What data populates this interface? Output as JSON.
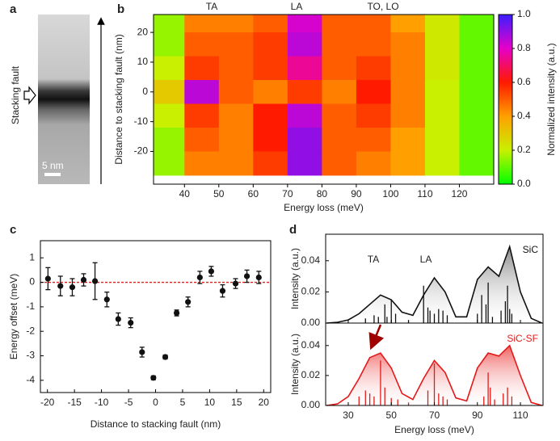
{
  "chart_data": [
    {
      "type": "image",
      "label": "a",
      "annotation": "Stacking fault",
      "scale_bar": "5 nm"
    },
    {
      "type": "heatmap",
      "label": "b",
      "x_label": "Energy loss (meV)",
      "y_label": "Distance to stacking fault (nm)",
      "colorbar_label": "Normalized intensity (a.u.)",
      "annotations": [
        "TA",
        "LA",
        "TO, LO"
      ],
      "x": [
        35,
        45,
        55,
        65,
        75,
        85,
        95,
        105,
        115,
        125
      ],
      "y": [
        24,
        16,
        8,
        0,
        -8,
        -16,
        -24
      ],
      "z": [
        [
          0.15,
          0.45,
          0.45,
          0.5,
          0.82,
          0.5,
          0.5,
          0.4,
          0.22,
          0.1
        ],
        [
          0.15,
          0.5,
          0.5,
          0.55,
          0.85,
          0.5,
          0.5,
          0.45,
          0.22,
          0.1
        ],
        [
          0.2,
          0.55,
          0.5,
          0.55,
          0.75,
          0.5,
          0.55,
          0.45,
          0.22,
          0.1
        ],
        [
          0.3,
          0.85,
          0.5,
          0.45,
          0.55,
          0.45,
          0.6,
          0.45,
          0.2,
          0.1
        ],
        [
          0.2,
          0.55,
          0.45,
          0.6,
          0.85,
          0.5,
          0.55,
          0.45,
          0.2,
          0.1
        ],
        [
          0.15,
          0.5,
          0.45,
          0.6,
          0.9,
          0.5,
          0.5,
          0.4,
          0.2,
          0.1
        ],
        [
          0.15,
          0.45,
          0.45,
          0.55,
          0.9,
          0.5,
          0.45,
          0.4,
          0.2,
          0.1
        ]
      ],
      "xlim": [
        31,
        130
      ],
      "ylim": [
        -31,
        26
      ],
      "xticks": [
        40,
        50,
        60,
        70,
        80,
        90,
        100,
        110,
        120
      ],
      "yticks": [
        -20,
        -10,
        0,
        10,
        20
      ],
      "clim": [
        0,
        1
      ],
      "cticks": [
        {
          "value": 0,
          "label": "0.0"
        },
        0.2,
        0.4,
        0.6,
        0.8,
        {
          "value": 1,
          "label": "1.0"
        }
      ],
      "colormap": [
        "#00ff00",
        "#c8f000",
        "#ffa000",
        "#ff1a00",
        "#e600c8",
        "#3c1eff"
      ]
    },
    {
      "type": "scatter",
      "label": "c",
      "x_label": "Distance to stacking fault (nm)",
      "y_label": "Energy offset (meV)",
      "x": [
        -19.9,
        -17.6,
        -15.4,
        -13.3,
        -11.2,
        -9,
        -6.9,
        -4.6,
        -2.5,
        -0.4,
        1.8,
        3.9,
        6,
        8.2,
        10.3,
        12.4,
        14.8,
        16.9,
        19.1
      ],
      "values": [
        0.15,
        -0.15,
        -0.2,
        0.1,
        0.05,
        -0.7,
        -1.5,
        -1.65,
        -2.85,
        -3.9,
        -3.05,
        -1.25,
        -0.8,
        0.2,
        0.45,
        -0.35,
        -0.05,
        0.25,
        0.2
      ],
      "errors": [
        0.45,
        0.4,
        0.35,
        0.25,
        0.75,
        0.3,
        0.25,
        0.2,
        0.2,
        0.08,
        0.08,
        0.12,
        0.2,
        0.25,
        0.2,
        0.25,
        0.2,
        0.25,
        0.25
      ],
      "color": "#111111",
      "reference_line": 0,
      "reference_color": "#e02020",
      "xlim": [
        -21.3,
        21.3
      ],
      "ylim": [
        -4.5,
        1.7
      ],
      "xticks": [
        -20,
        -15,
        -10,
        -5,
        0,
        5,
        10,
        15,
        20
      ],
      "yticks": [
        -4,
        -3,
        -2,
        -1,
        0,
        1
      ]
    },
    {
      "type": "line",
      "label": "d",
      "y_label": "Intensity (a.u.)",
      "annotations": [
        "TA",
        "LA"
      ],
      "x": [
        20,
        25,
        30,
        35,
        40,
        45,
        50,
        55,
        60,
        65,
        70,
        75,
        80,
        85,
        90,
        95,
        100,
        105,
        110,
        115,
        120
      ],
      "series": [
        {
          "name": "SiC",
          "color": "#111111",
          "values": [
            0,
            0.0005,
            0.002,
            0.006,
            0.012,
            0.018,
            0.015,
            0.007,
            0.005,
            0.018,
            0.029,
            0.02,
            0.004,
            0.004,
            0.028,
            0.036,
            0.03,
            0.049,
            0.02,
            0.003,
            0
          ]
        }
      ],
      "sticks": {
        "x": [
          38,
          42,
          44,
          47,
          48,
          50,
          52,
          58,
          65,
          67,
          68,
          70,
          72,
          74,
          76,
          90,
          92,
          94,
          95,
          97,
          101,
          103,
          104,
          105,
          106
        ],
        "values": [
          0.003,
          0.005,
          0.004,
          0.012,
          0.004,
          0.015,
          0.006,
          0.002,
          0.024,
          0.01,
          0.008,
          0.006,
          0.009,
          0.008,
          0.005,
          0.006,
          0.018,
          0.012,
          0.026,
          0.004,
          0.008,
          0.014,
          0.024,
          0.009,
          0.006
        ]
      },
      "xlim": [
        19.5,
        120.5
      ],
      "ylim": [
        0,
        0.057
      ],
      "yticks": [
        {
          "value": 0,
          "label": "0.00"
        },
        {
          "value": 0.02,
          "label": "0.02"
        },
        {
          "value": 0.04,
          "label": "0.04"
        }
      ]
    },
    {
      "type": "line",
      "y_label": "Intensity (a.u.)",
      "x_label": "Energy loss (meV)",
      "x": [
        20,
        25,
        30,
        35,
        40,
        45,
        50,
        55,
        60,
        65,
        70,
        75,
        80,
        85,
        90,
        95,
        100,
        105,
        110,
        115,
        120
      ],
      "series": [
        {
          "name": "SiC-SF",
          "color": "#e41a1a",
          "values": [
            0,
            0.001,
            0.006,
            0.018,
            0.032,
            0.035,
            0.025,
            0.008,
            0.004,
            0.018,
            0.03,
            0.022,
            0.005,
            0.003,
            0.025,
            0.035,
            0.033,
            0.04,
            0.02,
            0.002,
            0
          ]
        }
      ],
      "sticks": {
        "x": [
          35,
          38,
          40,
          42,
          45,
          47,
          50,
          53,
          58,
          67,
          70,
          72,
          74,
          76,
          93,
          95,
          96,
          98,
          102,
          104,
          106
        ],
        "values": [
          0.006,
          0.01,
          0.008,
          0.006,
          0.03,
          0.012,
          0.005,
          0.004,
          0.002,
          0.01,
          0.028,
          0.008,
          0.006,
          0.004,
          0.006,
          0.022,
          0.012,
          0.004,
          0.008,
          0.012,
          0.006
        ]
      },
      "xlim": [
        19.5,
        120.5
      ],
      "ylim": [
        0,
        0.055
      ],
      "xticks": [
        30,
        50,
        70,
        90,
        110
      ],
      "yticks": [
        {
          "value": 0,
          "label": "0.00"
        },
        {
          "value": 0.02,
          "label": "0.02"
        },
        {
          "value": 0.04,
          "label": "0.04"
        }
      ]
    }
  ]
}
